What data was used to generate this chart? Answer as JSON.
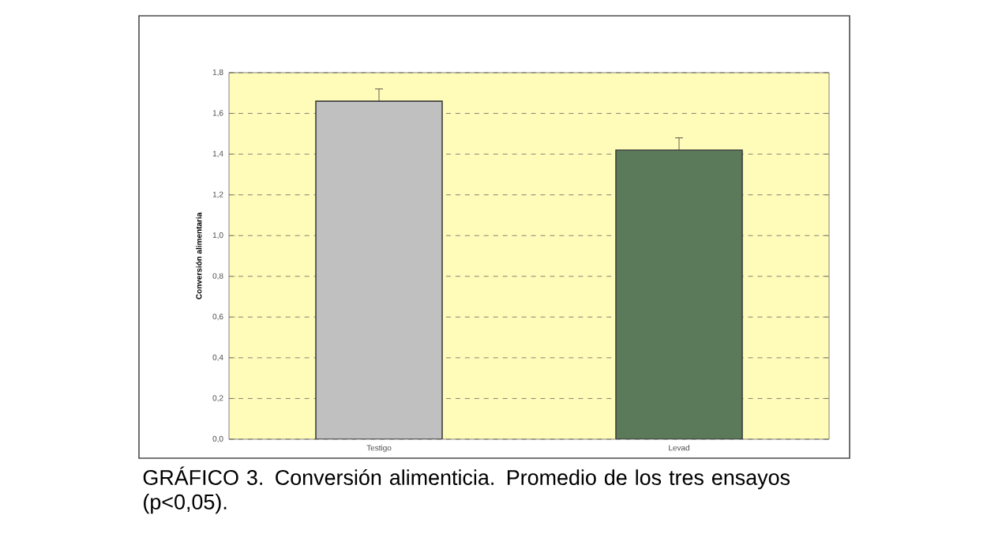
{
  "chart_data": {
    "type": "bar",
    "ylabel": "Conversión alimentaria",
    "categories": [
      "Testigo",
      "Levad"
    ],
    "values": [
      1.66,
      1.42
    ],
    "colors": [
      "#c0c0c0",
      "#5a7a5a"
    ],
    "errors": [
      [
        1.66,
        1.72
      ],
      [
        1.42,
        1.48
      ]
    ],
    "ylim": [
      0,
      1.8
    ],
    "yticks": [
      {
        "value": 0,
        "label": "0,0"
      },
      {
        "value": 0.2,
        "label": "0,2"
      },
      {
        "value": 0.4,
        "label": "0,4"
      },
      {
        "value": 0.6,
        "label": "0,6"
      },
      {
        "value": 0.8,
        "label": "0,8"
      },
      {
        "value": 1.0,
        "label": "1,0"
      },
      {
        "value": 1.2,
        "label": "1,2"
      },
      {
        "value": 1.4,
        "label": "1,4"
      },
      {
        "value": 1.6,
        "label": "1,6"
      },
      {
        "value": 1.8,
        "label": "1,8"
      }
    ],
    "grid": "y",
    "annotations": [
      "GRÁFICO 3. Conversión alimenticia. Promedio de los tres ensayos (p<0,05)."
    ]
  }
}
